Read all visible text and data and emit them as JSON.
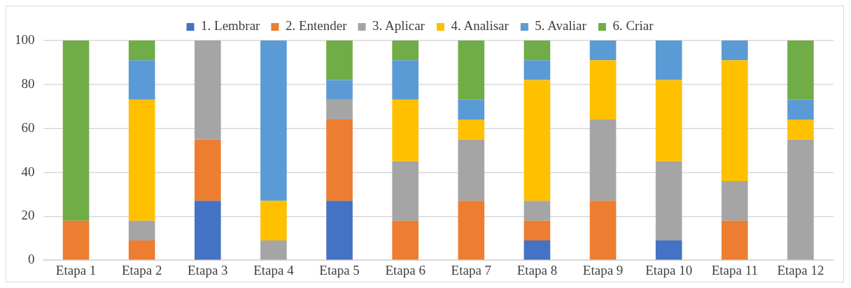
{
  "chart_data": {
    "type": "bar",
    "stacked": true,
    "categories": [
      "Etapa 1",
      "Etapa 2",
      "Etapa 3",
      "Etapa 4",
      "Etapa 5",
      "Etapa 6",
      "Etapa 7",
      "Etapa 8",
      "Etapa 9",
      "Etapa 10",
      "Etapa 11",
      "Etapa 12"
    ],
    "series": [
      {
        "name": "1. Lembrar",
        "color": "#4472c4",
        "values": [
          0,
          0,
          27,
          0,
          27,
          0,
          0,
          9,
          0,
          9,
          0,
          0
        ]
      },
      {
        "name": "2. Entender",
        "color": "#ed7d31",
        "values": [
          18,
          9,
          28,
          0,
          37,
          18,
          27,
          9,
          27,
          0,
          18,
          0
        ]
      },
      {
        "name": "3. Aplicar",
        "color": "#a5a5a5",
        "values": [
          0,
          9,
          45,
          9,
          9,
          27,
          28,
          9,
          37,
          36,
          18,
          55
        ]
      },
      {
        "name": "4. Analisar",
        "color": "#ffc000",
        "values": [
          0,
          55,
          0,
          18,
          0,
          28,
          9,
          55,
          27,
          37,
          55,
          9
        ]
      },
      {
        "name": "5. Avaliar",
        "color": "#5b9bd5",
        "values": [
          0,
          18,
          0,
          73,
          9,
          18,
          9,
          9,
          9,
          18,
          9,
          9
        ]
      },
      {
        "name": "6. Criar",
        "color": "#70ad47",
        "values": [
          82,
          9,
          0,
          0,
          18,
          9,
          27,
          9,
          0,
          0,
          0,
          27
        ]
      }
    ],
    "ylim": [
      0,
      100
    ],
    "yticks": [
      0,
      20,
      40,
      60,
      80,
      100
    ],
    "grid": "y",
    "legend": "top"
  }
}
